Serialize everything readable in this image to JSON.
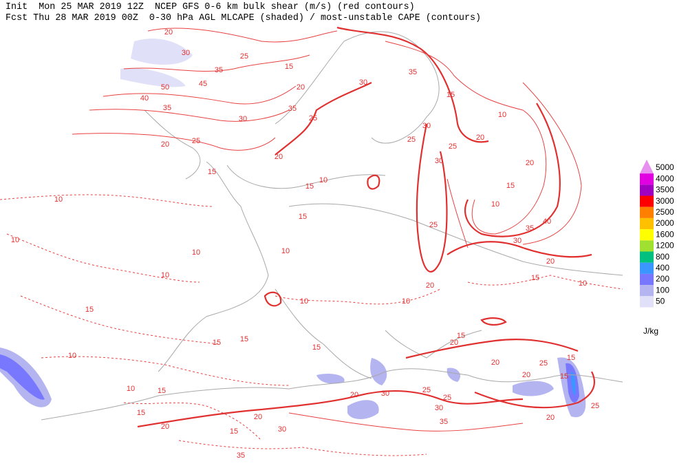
{
  "header": {
    "line1": "Init  Mon 25 MAR 2019 12Z  NCEP GFS 0-6 km bulk shear (m/s) (red contours)",
    "line2": "Fcst Thu 28 MAR 2019 00Z  0-30 hPa AGL MLCAPE (shaded) / most-unstable CAPE (contours)"
  },
  "legend": {
    "unit": "J/kg",
    "levels": [
      {
        "value": 5000,
        "color": "#e890f0"
      },
      {
        "value": 4000,
        "color": "#e000e0"
      },
      {
        "value": 3500,
        "color": "#a000c0"
      },
      {
        "value": 3000,
        "color": "#ff0000"
      },
      {
        "value": 2500,
        "color": "#ff8000"
      },
      {
        "value": 2000,
        "color": "#ffc000"
      },
      {
        "value": 1600,
        "color": "#ffff00"
      },
      {
        "value": 1200,
        "color": "#a0e030"
      },
      {
        "value": 800,
        "color": "#00c080"
      },
      {
        "value": 400,
        "color": "#3c96ff"
      },
      {
        "value": 200,
        "color": "#7878ff"
      },
      {
        "value": 100,
        "color": "#b4b4f0"
      },
      {
        "value": 50,
        "color": "#e0e0f8"
      }
    ]
  },
  "contour_labels": [
    20,
    30,
    25,
    35,
    45,
    50,
    40,
    35,
    20,
    25,
    15,
    20,
    35,
    30,
    25,
    30,
    35,
    20,
    30,
    25,
    30,
    25,
    15,
    20,
    10,
    20,
    15,
    10,
    40,
    35,
    30,
    20,
    25,
    20,
    15,
    10,
    10,
    15,
    15,
    15,
    10,
    10,
    10,
    10,
    10,
    10,
    15,
    15,
    15,
    10,
    15,
    10,
    15,
    20,
    20,
    30,
    15,
    35,
    30,
    20,
    25,
    25,
    30,
    35,
    20,
    25,
    20,
    15,
    15,
    25,
    20,
    20,
    15,
    10,
    15
  ]
}
